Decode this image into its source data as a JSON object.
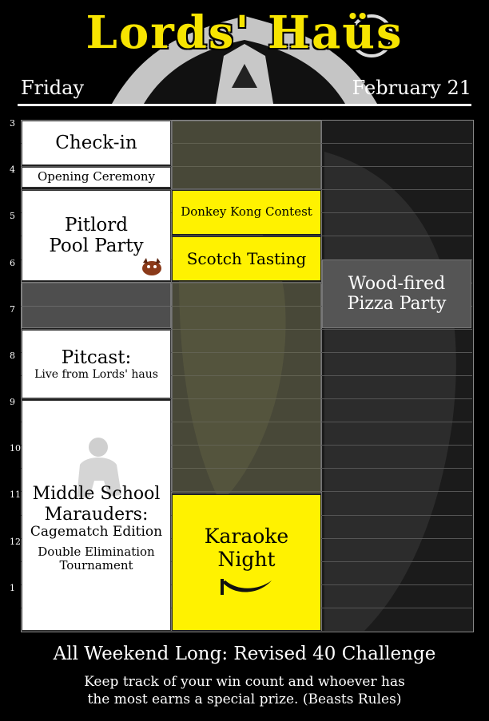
{
  "header": {
    "title": "Lords' Haüs",
    "day": "Friday",
    "date": "February 21"
  },
  "hours": [
    "3",
    "4",
    "5",
    "6",
    "7",
    "8",
    "9",
    "10",
    "11",
    "12",
    "1"
  ],
  "events": {
    "checkin": "Check-in",
    "opening": "Opening Ceremony",
    "pitlord_line1": "Pitlord",
    "pitlord_line2": "Pool Party",
    "pitcast_line1": "Pitcast:",
    "pitcast_line2": "Live from Lords' haus",
    "msm_line1": "Middle School",
    "msm_line2": "Marauders:",
    "msm_line3": "Cagematch Edition",
    "msm_line4": "Double Elimination",
    "msm_line5": "Tournament",
    "donkey_kong": "Donkey Kong Contest",
    "scotch": "Scotch Tasting",
    "karaoke_line1": "Karaoke",
    "karaoke_line2": "Night",
    "pizza_line1": "Wood-fired",
    "pizza_line2": "Pizza Party"
  },
  "footer": {
    "title": "All Weekend Long: Revised 40 Challenge",
    "line1": "Keep track of your win count and whoever has",
    "line2": "the most earns a special prize. (Beasts Rules)"
  },
  "colors": {
    "accent_yellow": "#fff200",
    "title_yellow": "#f7e400",
    "background": "#000000",
    "event_gray": "#555555"
  }
}
